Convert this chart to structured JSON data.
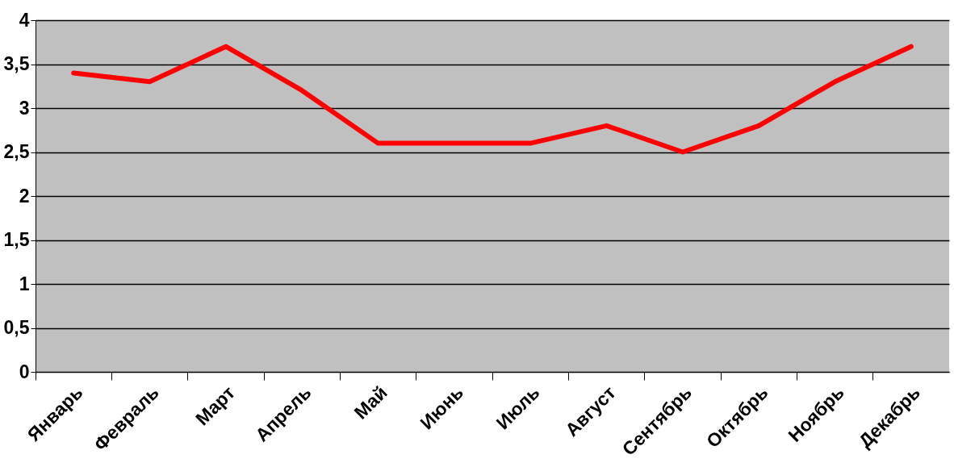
{
  "chart_data": {
    "type": "line",
    "categories": [
      "Январь",
      "Февраль",
      "Март",
      "Апрель",
      "Май",
      "Июнь",
      "Июль",
      "Август",
      "Сентябрь",
      "Октябрь",
      "Ноябрь",
      "Декабрь"
    ],
    "series": [
      {
        "color": "#ff0000",
        "values": [
          3.4,
          3.3,
          3.7,
          3.2,
          2.6,
          2.6,
          2.6,
          2.8,
          2.5,
          2.8,
          3.3,
          3.7
        ]
      }
    ],
    "ylim": [
      0,
      4
    ],
    "yticks": [
      0,
      {
        "value": 0.5,
        "label": "0,5"
      },
      1,
      {
        "value": 1.5,
        "label": "1,5"
      },
      2,
      {
        "value": 2.5,
        "label": "2,5"
      },
      3,
      {
        "value": 3.5,
        "label": "3,5"
      },
      4
    ],
    "grid": "y",
    "legend": false,
    "marker": "none",
    "line_style": "solid"
  }
}
